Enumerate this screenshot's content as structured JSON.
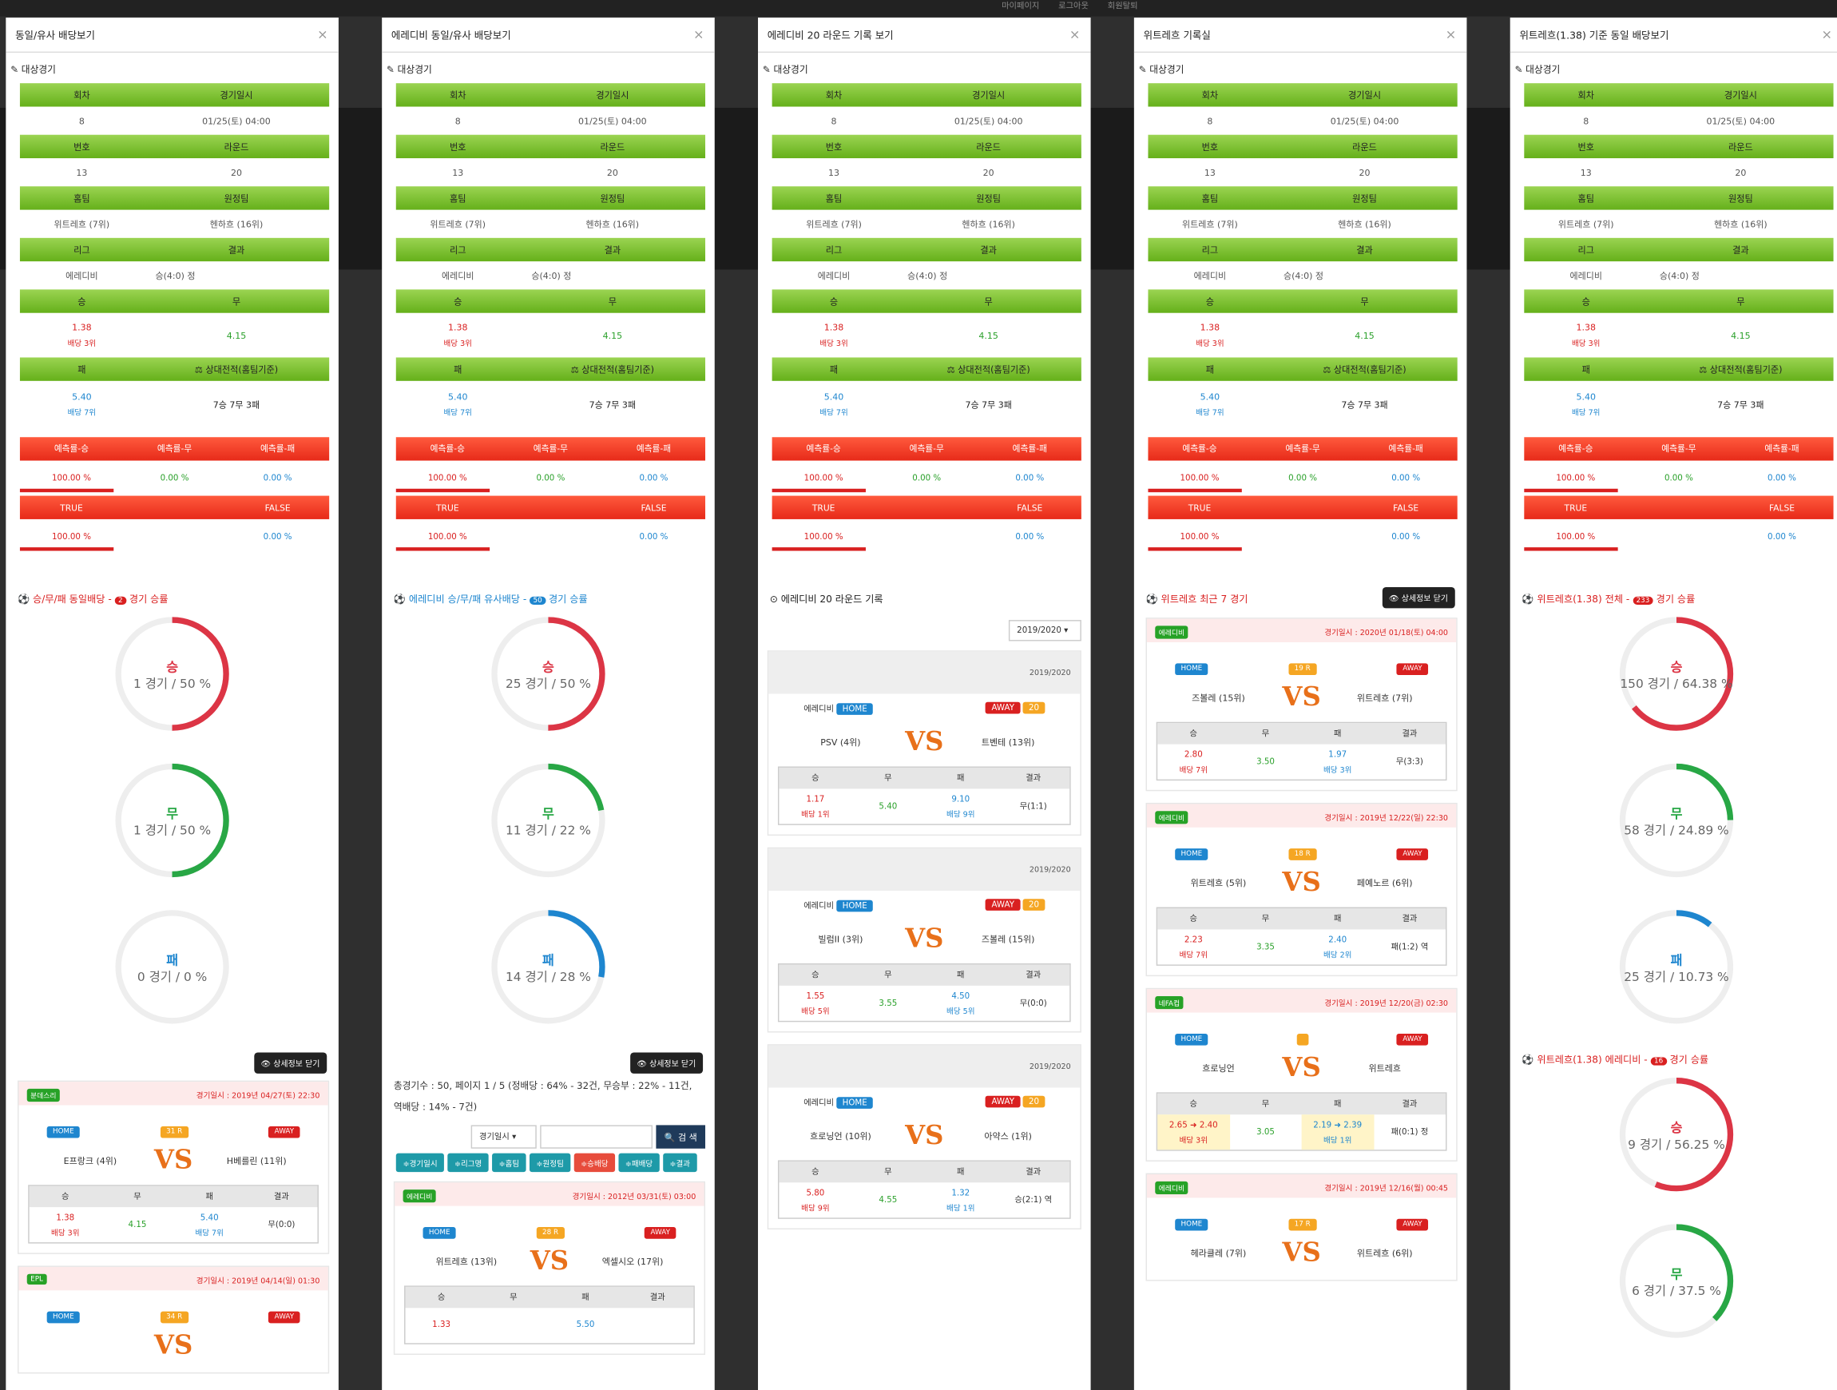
{
  "topbar": {
    "mypage": "마이페이지",
    "logout": "로그아웃",
    "join": "회원탈퇴"
  },
  "panels": [
    {
      "title": "동일/유사 배당보기"
    },
    {
      "title": "에레디비 동일/유사 배당보기"
    },
    {
      "title": "에레디비 20 라운드 기록 보기"
    },
    {
      "title": "위트레흐 기록실"
    },
    {
      "title": "위트레흐(1.38) 기준 동일 배당보기"
    }
  ],
  "target": {
    "section": "대상경기",
    "h_round": "회차",
    "h_date": "경기일시",
    "round": "8",
    "date": "01/25(토) 04:00",
    "h_number": "번호",
    "h_roundno": "라운드",
    "number": "13",
    "roundno": "20",
    "h_home": "홈팀",
    "h_away": "원정팀",
    "home": "위트레흐 (7위)",
    "away": "헨하흐 (16위)",
    "h_league": "리그",
    "h_result": "결과",
    "league": "에레디비",
    "result": "승(4:0) 정",
    "h_win": "승",
    "h_draw": "무",
    "win": "1.38",
    "win_sub": "배당 3위",
    "draw": "4.15",
    "h_loss": "패",
    "h_h2h": "⚖ 상대전적(홈팀기준)",
    "loss": "5.40",
    "loss_sub": "배당 7위",
    "h2h": "7승 7무 3패",
    "pred_w": "예측률-승",
    "pred_d": "예측률-무",
    "pred_l": "예측률-패",
    "pw": "100.00 %",
    "pd": "0.00 %",
    "pl": "0.00 %",
    "true_h": "TRUE",
    "false_h": "FALSE",
    "tv": "100.00 %",
    "fv": "0.00 %"
  },
  "labels": {
    "detail_close": "👁 상세정보 닫기",
    "vs": "VS",
    "home": "HOME",
    "away": "AWAY",
    "win": "승",
    "draw": "무",
    "loss": "패",
    "result": "결과",
    "date_prefix": "경기일시 : "
  },
  "p1": {
    "title": "승/무/패 동일배당 -",
    "count": "2",
    "suffix": "경기 승률",
    "gauges": [
      {
        "label": "승",
        "text": "1 경기 / 50 %",
        "pct": 0.5,
        "color": "#dc3545"
      },
      {
        "label": "무",
        "text": "1 경기 / 50 %",
        "pct": 0.5,
        "color": "#28a745"
      },
      {
        "label": "패",
        "text": "0 경기 / 0 %",
        "pct": 0.0,
        "color": "#1e86cf"
      }
    ],
    "m1": {
      "league": "분데스리",
      "date": "2019년 04/27(토) 22:30",
      "rank": "31 R",
      "home": "E프랑크 (4위)",
      "away": "H베를린 (11위)",
      "w": "1.38",
      "ws": "배당 3위",
      "d": "4.15",
      "l": "5.40",
      "ls": "배당 7위",
      "r": "무(0:0)"
    },
    "m2": {
      "league": "EPL",
      "date": "2019년 04/14(일) 01:30",
      "rank": "34 R"
    }
  },
  "p2": {
    "title": "에레디비 승/무/패 유사배당 -",
    "count": "50",
    "suffix": "경기 승률",
    "gauges": [
      {
        "label": "승",
        "text": "25 경기 / 50 %",
        "pct": 0.5,
        "color": "#dc3545"
      },
      {
        "label": "무",
        "text": "11 경기 / 22 %",
        "pct": 0.22,
        "color": "#28a745"
      },
      {
        "label": "패",
        "text": "14 경기 / 28 %",
        "pct": 0.28,
        "color": "#1e86cf"
      }
    ],
    "summary": "총경기수 : 50, 페이지 1 / 5 (정배당 : 64% - 32건, 무승부 : 22% - 11건, 역배당 : 14% - 7건)",
    "sel": "경기일시 ▾",
    "search": "🔍 검 색",
    "btns": [
      "≑경기일시",
      "≑리그명",
      "≑홈팀",
      "≑원정팀",
      "≑승배당",
      "≑패배당",
      "≑결과"
    ],
    "m1": {
      "league": "에레디비",
      "date": "2012년 03/31(토) 03:00",
      "rank": "28 R",
      "home": "위트레흐 (13위)",
      "away": "엑셀시오 (17위)",
      "w": "1.33",
      "l": "5.50"
    }
  },
  "p3": {
    "title": "⊙ 에레디비 20 라운드 기록",
    "season": "2019/2020 ▾",
    "season_bar": "2019/2020",
    "league": "에레디비",
    "records": [
      {
        "home": "PSV (4위)",
        "away": "트벤테 (13위)",
        "w": "1.17",
        "ws": "배당 1위",
        "d": "5.40",
        "l": "9.10",
        "ls": "배당 9위",
        "r": "무(1:1)"
      },
      {
        "home": "빌럼II (3위)",
        "away": "즈볼레 (15위)",
        "w": "1.55",
        "ws": "배당 5위",
        "d": "3.55",
        "l": "4.50",
        "ls": "배당 5위",
        "r": "무(0:0)"
      },
      {
        "home": "흐로닝언 (10위)",
        "away": "아약스 (1위)",
        "w": "5.80",
        "ws": "배당 9위",
        "d": "4.55",
        "l": "1.32",
        "ls": "배당 1위",
        "r": "승(2:1) 역"
      }
    ],
    "rank": "20"
  },
  "p4": {
    "title": "위트레흐 최근 7 경기",
    "matches": [
      {
        "league": "에레디비",
        "date": "2020년 01/18(토) 04:00",
        "rank": "19 R",
        "home": "즈볼레 (15위)",
        "away": "위트레흐 (7위)",
        "w": "2.80",
        "ws": "배당 7위",
        "d": "3.50",
        "l": "1.97",
        "ls": "배당 3위",
        "r": "무(3:3)"
      },
      {
        "league": "에레디비",
        "date": "2019년 12/22(일) 22:30",
        "rank": "18 R",
        "home": "위트레흐 (5위)",
        "away": "페예노르 (6위)",
        "w": "2.23",
        "ws": "배당 7위",
        "d": "3.35",
        "l": "2.40",
        "ls": "배당 2위",
        "r": "패(1:2) 역"
      },
      {
        "league": "네FA컵",
        "date": "2019년 12/20(금) 02:30",
        "rank": "",
        "home": "흐로닝언",
        "away": "위트레흐",
        "w": "2.65 ➜ 2.40",
        "ws": "배당 3위",
        "d": "3.05",
        "l": "2.19 ➜ 2.39",
        "ls": "배당 1위",
        "r": "패(0:1) 정"
      },
      {
        "league": "에레디비",
        "date": "2019년 12/16(월) 00:45",
        "rank": "17 R",
        "home": "헤라클레 (7위)",
        "away": "위트레흐 (6위)"
      }
    ]
  },
  "p5": {
    "title": "위트레흐(1.38) 전체 -",
    "count": "233",
    "suffix": "경기 승률",
    "gauges": [
      {
        "label": "승",
        "text": "150 경기 / 64.38 %",
        "pct": 0.6438,
        "color": "#dc3545"
      },
      {
        "label": "무",
        "text": "58 경기 / 24.89 %",
        "pct": 0.2489,
        "color": "#28a745"
      },
      {
        "label": "패",
        "text": "25 경기 / 10.73 %",
        "pct": 0.1073,
        "color": "#1e86cf"
      }
    ],
    "title2": "위트레흐(1.38) 에레디비 -",
    "count2": "16",
    "suffix2": "경기 승률",
    "gauges2": [
      {
        "label": "승",
        "text": "9 경기 / 56.25 %",
        "pct": 0.5625,
        "color": "#dc3545"
      },
      {
        "label": "무",
        "text": "6 경기 / 37.5 %",
        "pct": 0.375,
        "color": "#28a745"
      }
    ]
  }
}
